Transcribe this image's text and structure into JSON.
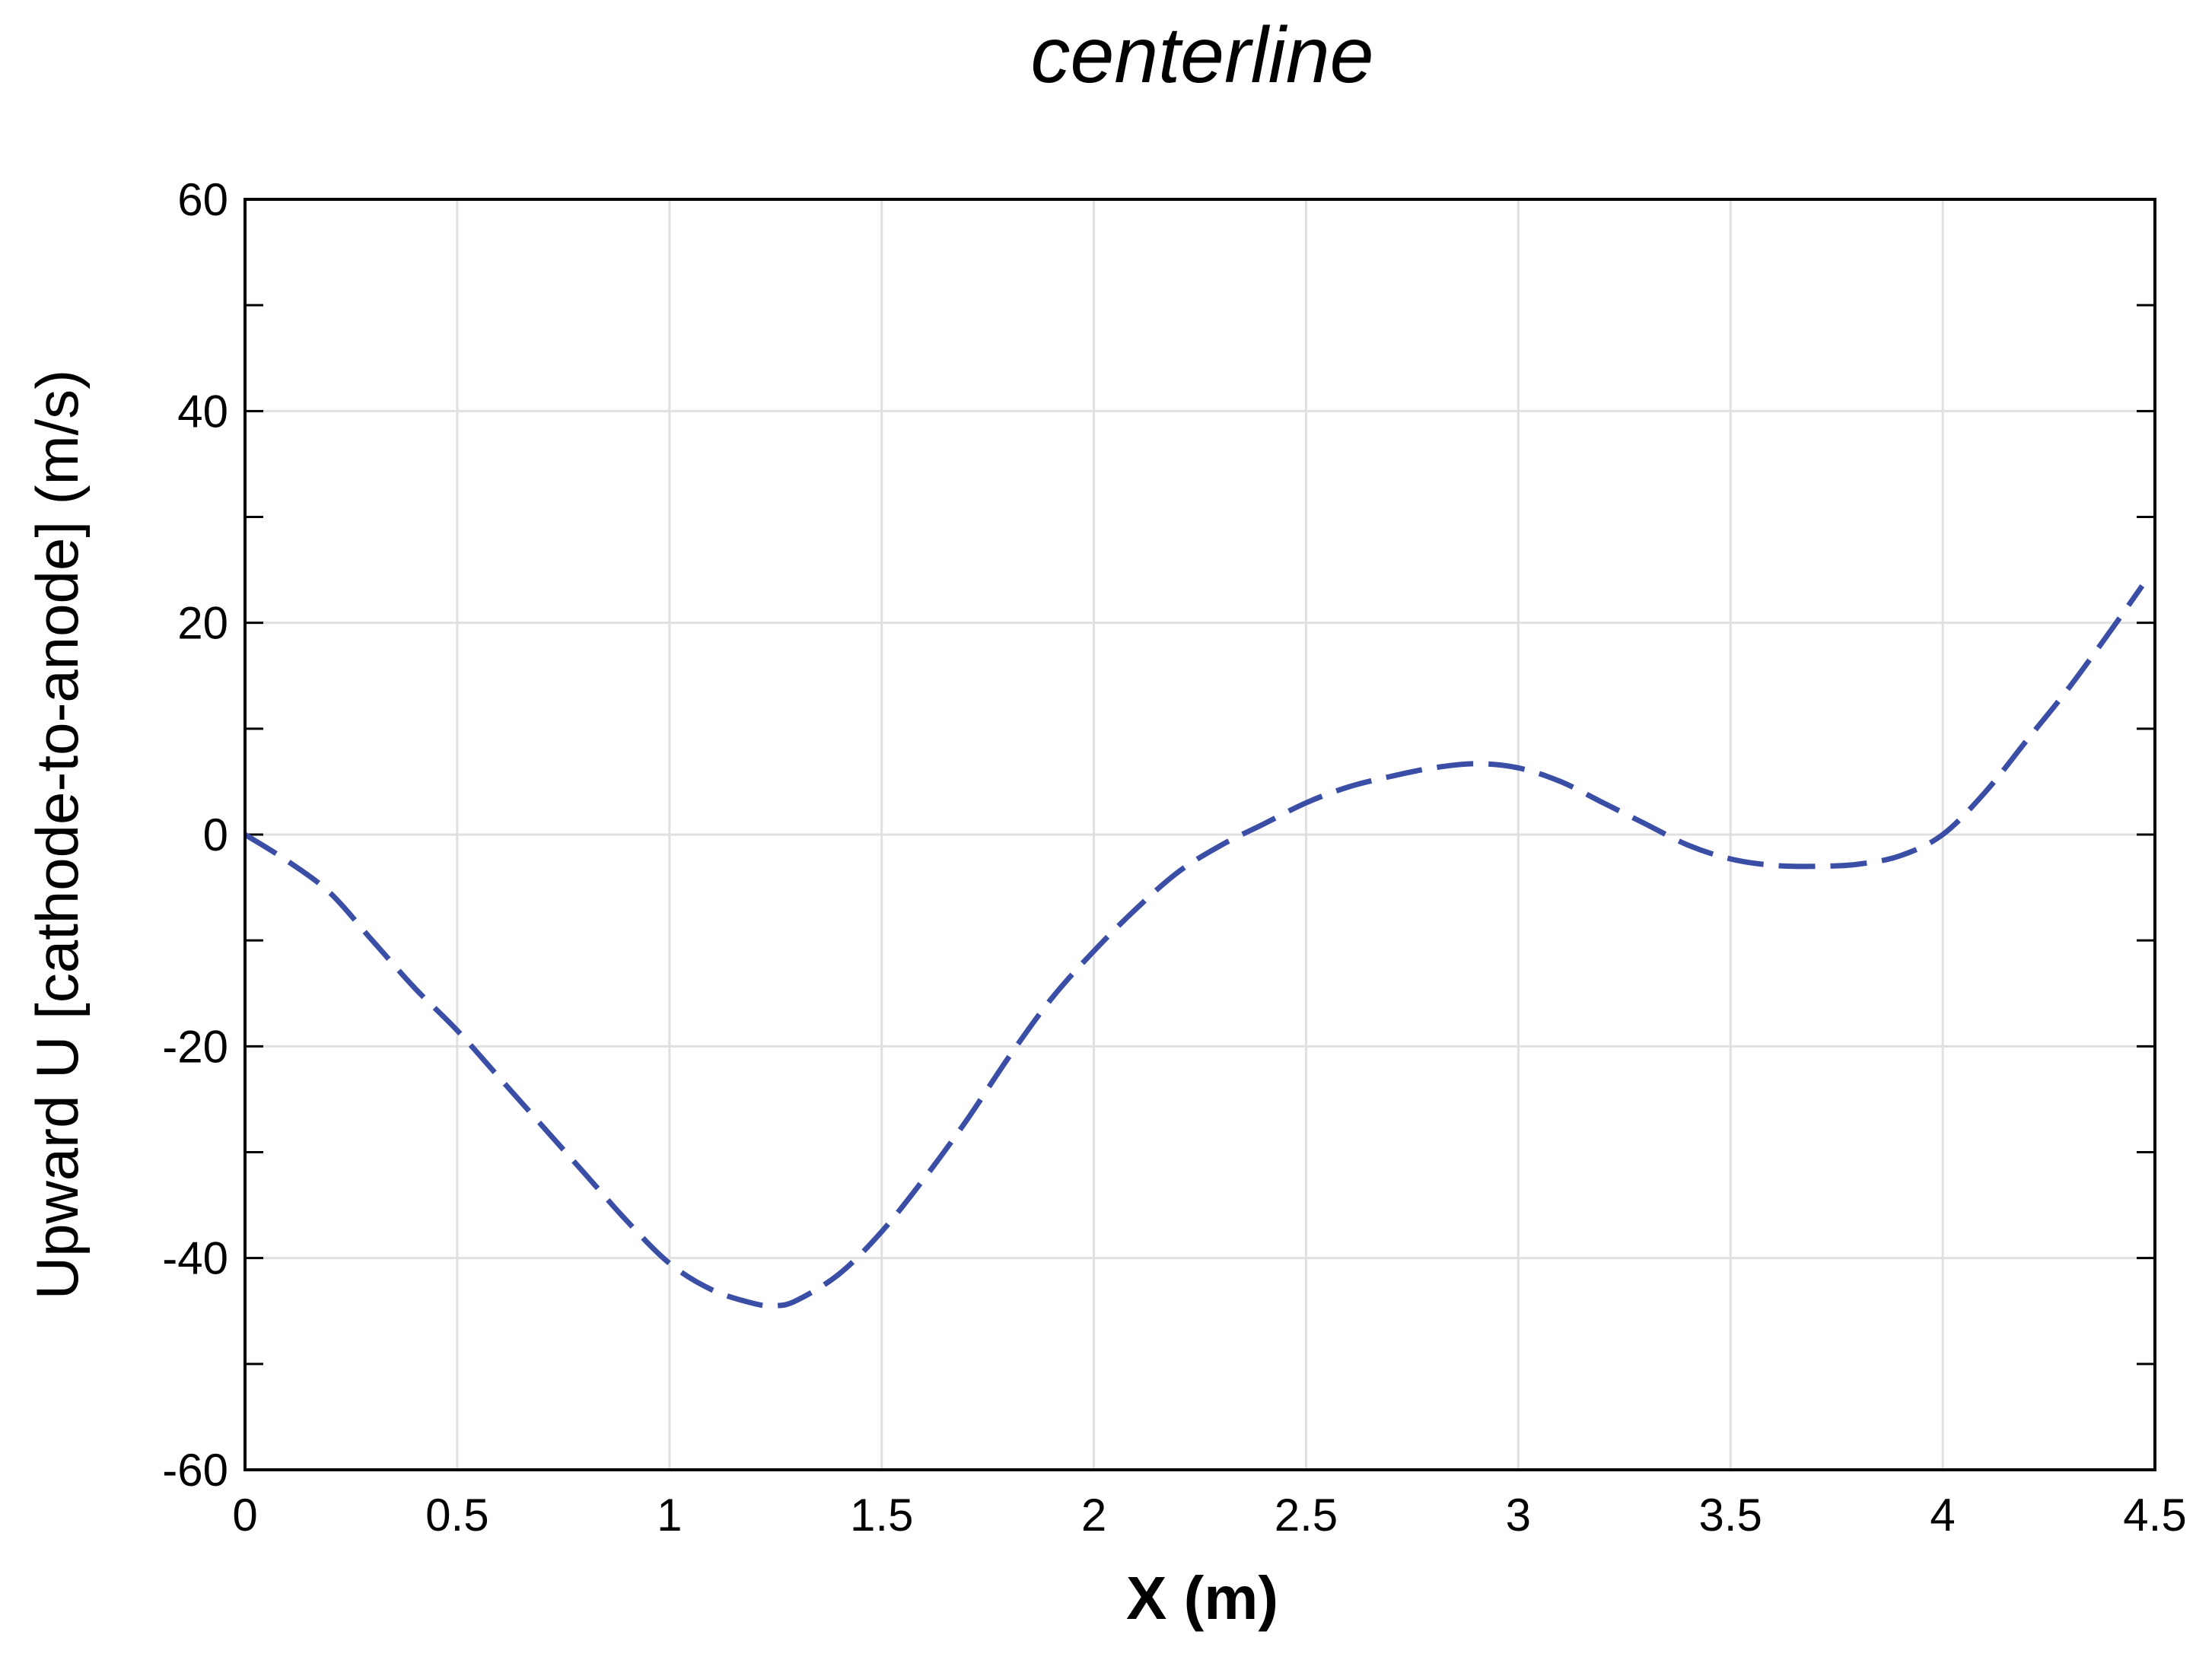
{
  "chart_data": {
    "type": "line",
    "title": "centerline",
    "xlabel": "X (m)",
    "ylabel": "Upward U [cathode-to-anode] (m/s)",
    "xlim": [
      0,
      4.5
    ],
    "ylim": [
      -60,
      60
    ],
    "xticks": [
      0,
      0.5,
      1,
      1.5,
      2,
      2.5,
      3,
      3.5,
      4,
      4.5
    ],
    "xtick_labels": [
      "0",
      "0.5",
      "1",
      "1.5",
      "2",
      "2.5",
      "3",
      "3.5",
      "4",
      "4.5"
    ],
    "yticks": [
      -60,
      -40,
      -20,
      0,
      20,
      40,
      60
    ],
    "ytick_labels": [
      "-60",
      "-40",
      "-20",
      "0",
      "20",
      "40",
      "60"
    ],
    "y_minor_ticks": [
      -50,
      -30,
      -10,
      10,
      30,
      50
    ],
    "grid": true,
    "legend": "none",
    "series": [
      {
        "color": "#3b4ea6",
        "line_style": "dashed",
        "x": [
          0,
          0.1,
          0.2,
          0.3,
          0.4,
          0.5,
          0.6,
          0.7,
          0.8,
          0.9,
          1.0,
          1.1,
          1.2,
          1.25,
          1.3,
          1.4,
          1.5,
          1.6,
          1.7,
          1.8,
          1.9,
          2.0,
          2.1,
          2.2,
          2.3,
          2.4,
          2.5,
          2.6,
          2.7,
          2.8,
          2.9,
          3.0,
          3.1,
          3.2,
          3.3,
          3.4,
          3.5,
          3.6,
          3.7,
          3.8,
          3.9,
          4.0,
          4.1,
          4.2,
          4.3,
          4.4,
          4.47
        ],
        "y": [
          0,
          -2.5,
          -5.5,
          -10,
          -14.5,
          -18.5,
          -23,
          -27.5,
          -32,
          -36.5,
          -40.5,
          -43,
          -44.3,
          -44.5,
          -44,
          -41.5,
          -37.5,
          -32.5,
          -27,
          -21,
          -15.5,
          -11,
          -7,
          -3.5,
          -1,
          1,
          3,
          4.5,
          5.5,
          6.3,
          6.7,
          6.3,
          5,
          3,
          1,
          -1,
          -2.3,
          -2.9,
          -3,
          -2.8,
          -2,
          0,
          4,
          9,
          14,
          19.5,
          23.5
        ]
      }
    ]
  }
}
